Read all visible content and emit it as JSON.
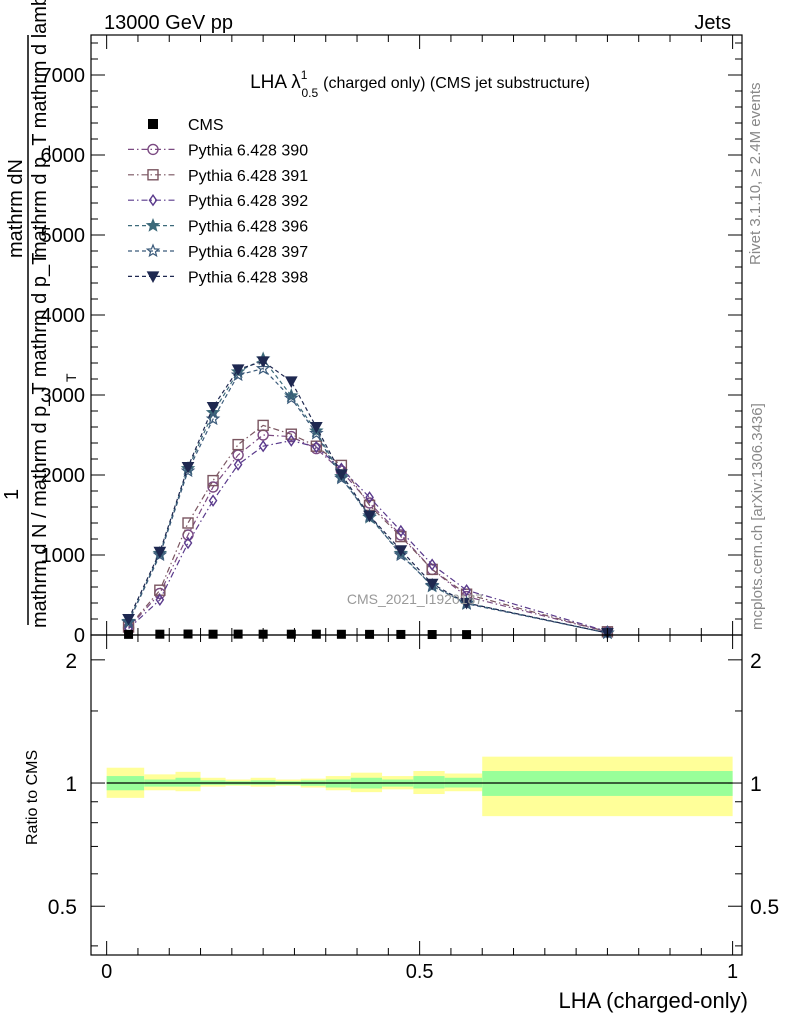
{
  "header": {
    "left": "13000 GeV pp",
    "right": "Jets"
  },
  "side_labels": {
    "rivet": "Rivet 3.1.10, ≥ 2.4M events",
    "mcplots": "mcplots.cern.ch [arXiv:1306.3436]"
  },
  "watermark": "CMS_2021_I1920187",
  "chart_data": [
    {
      "type": "line",
      "title": "LHA λ(0.5, 1) (charged only) (CMS jet substructure)",
      "title_main": "LHA λ",
      "title_sup": "1",
      "title_sub": "0.5",
      "title_tail": "(charged only) (CMS jet substructure)",
      "ylabel_top": "mathrm dN",
      "ylabel_top2": "mathrm d p_T mathrm d lambda",
      "ylabel_num": "1",
      "ylabel_den": "mathrm d N / mathrm d p_T mathrm d p_T",
      "ylabel_sub": "T",
      "xlim": [
        -0.025,
        1.015
      ],
      "ylim": [
        0,
        7500
      ],
      "yticks": [
        0,
        1000,
        2000,
        3000,
        4000,
        5000,
        6000,
        7000
      ],
      "ytick_labels": [
        "0",
        "1000",
        "2000",
        "3000",
        "4000",
        "5000",
        "6000",
        "7000"
      ],
      "grid": false,
      "legend_position": "top-left",
      "x": [
        0.035,
        0.085,
        0.13,
        0.17,
        0.21,
        0.25,
        0.295,
        0.335,
        0.375,
        0.42,
        0.47,
        0.52,
        0.575,
        0.8
      ],
      "data": {
        "name": "CMS",
        "x": [
          0.035,
          0.085,
          0.13,
          0.17,
          0.21,
          0.25,
          0.295,
          0.335,
          0.375,
          0.42,
          0.47,
          0.52,
          0.575
        ],
        "values": [
          8,
          10,
          12,
          10,
          11,
          10,
          10,
          10,
          9,
          8,
          7,
          6,
          5
        ]
      },
      "series": [
        {
          "name": "Pythia 6.428 390",
          "color": "#7b4a82",
          "marker": "circle",
          "values": [
            90,
            520,
            1250,
            1850,
            2250,
            2500,
            2480,
            2330,
            2050,
            1650,
            1250,
            820,
            480,
            40
          ]
        },
        {
          "name": "Pythia 6.428 391",
          "color": "#7a5560",
          "marker": "square",
          "values": [
            100,
            560,
            1400,
            1930,
            2380,
            2620,
            2510,
            2360,
            2120,
            1620,
            1230,
            820,
            510,
            40
          ]
        },
        {
          "name": "Pythia 6.428 392",
          "color": "#5a3a8c",
          "marker": "diamond",
          "values": [
            80,
            440,
            1150,
            1680,
            2130,
            2360,
            2430,
            2350,
            2080,
            1720,
            1300,
            880,
            560,
            45
          ]
        },
        {
          "name": "Pythia 6.428 396",
          "color": "#3d6a7a",
          "marker": "star-filled",
          "values": [
            170,
            1020,
            2080,
            2780,
            3290,
            3450,
            2990,
            2550,
            1980,
            1470,
            1020,
            610,
            400,
            25
          ]
        },
        {
          "name": "Pythia 6.428 397",
          "color": "#3a5a7a",
          "marker": "star-open",
          "values": [
            160,
            1000,
            2050,
            2700,
            3250,
            3330,
            2960,
            2520,
            1960,
            1490,
            1000,
            620,
            390,
            25
          ]
        },
        {
          "name": "Pythia 6.428 398",
          "color": "#1e2850",
          "marker": "triangle-down",
          "values": [
            200,
            1040,
            2100,
            2850,
            3320,
            3420,
            3170,
            2600,
            2010,
            1490,
            1060,
            640,
            400,
            25
          ]
        }
      ]
    },
    {
      "type": "area",
      "ylabel": "Ratio to CMS",
      "xlabel": "LHA (charged-only)",
      "xlim": [
        -0.025,
        1.015
      ],
      "xticks": [
        0,
        0.5,
        1
      ],
      "xtick_labels": [
        "0",
        "0.5",
        "1"
      ],
      "ylim": [
        0.38,
        2.3
      ],
      "log_y": true,
      "yticks": [
        0.5,
        1,
        2
      ],
      "ytick_labels": [
        "0.5",
        "1",
        "2"
      ],
      "band_colors": {
        "inner": "#99ff99",
        "outer": "#ffff99"
      },
      "bins": [
        {
          "x0": 0.0,
          "x1": 0.06,
          "inner": [
            0.96,
            1.04
          ],
          "outer": [
            0.92,
            1.09
          ]
        },
        {
          "x0": 0.06,
          "x1": 0.11,
          "inner": [
            0.98,
            1.02
          ],
          "outer": [
            0.96,
            1.05
          ]
        },
        {
          "x0": 0.11,
          "x1": 0.15,
          "inner": [
            0.98,
            1.03
          ],
          "outer": [
            0.955,
            1.065
          ]
        },
        {
          "x0": 0.15,
          "x1": 0.19,
          "inner": [
            0.99,
            1.015
          ],
          "outer": [
            0.98,
            1.03
          ]
        },
        {
          "x0": 0.19,
          "x1": 0.23,
          "inner": [
            0.99,
            1.01
          ],
          "outer": [
            0.985,
            1.02
          ]
        },
        {
          "x0": 0.23,
          "x1": 0.27,
          "inner": [
            0.99,
            1.015
          ],
          "outer": [
            0.98,
            1.03
          ]
        },
        {
          "x0": 0.27,
          "x1": 0.31,
          "inner": [
            0.99,
            1.01
          ],
          "outer": [
            0.985,
            1.02
          ]
        },
        {
          "x0": 0.31,
          "x1": 0.35,
          "inner": [
            0.985,
            1.015
          ],
          "outer": [
            0.975,
            1.025
          ]
        },
        {
          "x0": 0.35,
          "x1": 0.39,
          "inner": [
            0.975,
            1.02
          ],
          "outer": [
            0.96,
            1.04
          ]
        },
        {
          "x0": 0.39,
          "x1": 0.44,
          "inner": [
            0.97,
            1.03
          ],
          "outer": [
            0.95,
            1.06
          ]
        },
        {
          "x0": 0.44,
          "x1": 0.49,
          "inner": [
            0.98,
            1.02
          ],
          "outer": [
            0.965,
            1.04
          ]
        },
        {
          "x0": 0.49,
          "x1": 0.54,
          "inner": [
            0.97,
            1.04
          ],
          "outer": [
            0.94,
            1.07
          ]
        },
        {
          "x0": 0.54,
          "x1": 0.6,
          "inner": [
            0.975,
            1.03
          ],
          "outer": [
            0.955,
            1.055
          ]
        },
        {
          "x0": 0.6,
          "x1": 1.0,
          "inner": [
            0.93,
            1.07
          ],
          "outer": [
            0.83,
            1.16
          ]
        }
      ]
    }
  ]
}
